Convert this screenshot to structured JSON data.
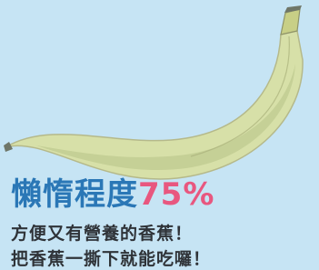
{
  "headline": {
    "label": "懶惰程度",
    "value": "75%"
  },
  "lines": [
    "方便又有營養的香蕉！",
    "把香蕉一撕下就能吃囉！"
  ]
}
